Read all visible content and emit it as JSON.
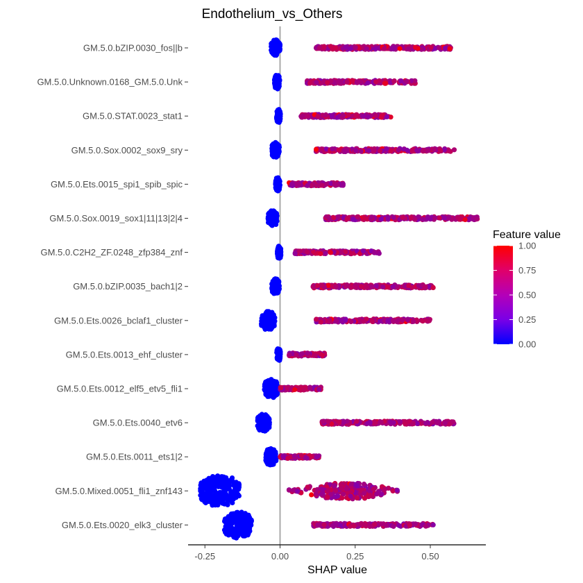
{
  "chart_data": {
    "type": "scatter",
    "subtype": "shap-beeswarm",
    "title": "Endothelium_vs_Others",
    "xlabel": "SHAP value",
    "ylabel": "",
    "xlim": [
      -0.3,
      0.68
    ],
    "xticks": [
      -0.25,
      0.0,
      0.25,
      0.5
    ],
    "xtick_labels": [
      "-0.25",
      "0.00",
      "0.25",
      "0.50"
    ],
    "zero_line": true,
    "grid": false,
    "legend": {
      "title": "Feature value",
      "position": "right",
      "ticks": [
        "1.00",
        "0.75",
        "0.50",
        "0.25",
        "0.00"
      ],
      "range": [
        0,
        1
      ],
      "colors": [
        "#0000ff",
        "#ff0000"
      ]
    },
    "features": [
      {
        "label": "GM.5.0.bZIP.0030_fos||b",
        "neg_center": -0.015,
        "neg_width": 0.03,
        "pos_min": 0.12,
        "pos_max": 0.57,
        "pos_mean": 0.3
      },
      {
        "label": "GM.5.0.Unknown.0168_GM.5.0.Unk",
        "neg_center": -0.01,
        "neg_width": 0.018,
        "pos_min": 0.09,
        "pos_max": 0.45,
        "pos_mean": 0.22
      },
      {
        "label": "GM.5.0.STAT.0023_stat1",
        "neg_center": -0.005,
        "neg_width": 0.013,
        "pos_min": 0.07,
        "pos_max": 0.37,
        "pos_mean": 0.18
      },
      {
        "label": "GM.5.0.Sox.0002_sox9_sry",
        "neg_center": -0.015,
        "neg_width": 0.025,
        "pos_min": 0.12,
        "pos_max": 0.58,
        "pos_mean": 0.3
      },
      {
        "label": "GM.5.0.Ets.0015_spi1_spib_spic",
        "neg_center": -0.008,
        "neg_width": 0.015,
        "pos_min": 0.03,
        "pos_max": 0.21,
        "pos_mean": 0.1
      },
      {
        "label": "GM.5.0.Sox.0019_sox1|11|13|2|4",
        "neg_center": -0.025,
        "neg_width": 0.03,
        "pos_min": 0.15,
        "pos_max": 0.66,
        "pos_mean": 0.35
      },
      {
        "label": "GM.5.0.C2H2_ZF.0248_zfp384_znf",
        "neg_center": -0.003,
        "neg_width": 0.012,
        "pos_min": 0.05,
        "pos_max": 0.33,
        "pos_mean": 0.17
      },
      {
        "label": "GM.5.0.bZIP.0035_bach1|2",
        "neg_center": -0.015,
        "neg_width": 0.025,
        "pos_min": 0.11,
        "pos_max": 0.51,
        "pos_mean": 0.28
      },
      {
        "label": "GM.5.0.Ets.0026_bclaf1_cluster",
        "neg_center": -0.04,
        "neg_width": 0.045,
        "pos_min": 0.12,
        "pos_max": 0.5,
        "pos_mean": 0.25
      },
      {
        "label": "GM.5.0.Ets.0013_ehf_cluster",
        "neg_center": -0.005,
        "neg_width": 0.012,
        "pos_min": 0.03,
        "pos_max": 0.15,
        "pos_mean": 0.07
      },
      {
        "label": "GM.5.0.Ets.0012_elf5_etv5_fli1",
        "neg_center": -0.03,
        "neg_width": 0.045,
        "pos_min": 0.0,
        "pos_max": 0.14,
        "pos_mean": 0.05
      },
      {
        "label": "GM.5.0.Ets.0040_etv6",
        "neg_center": -0.055,
        "neg_width": 0.04,
        "pos_min": 0.14,
        "pos_max": 0.58,
        "pos_mean": 0.3
      },
      {
        "label": "GM.5.0.Ets.0011_ets1|2",
        "neg_center": -0.03,
        "neg_width": 0.035,
        "pos_min": 0.0,
        "pos_max": 0.13,
        "pos_mean": 0.05
      },
      {
        "label": "GM.5.0.Mixed.0051_fli1_znf143",
        "neg_center": -0.2,
        "neg_width": 0.13,
        "pos_min": 0.03,
        "pos_max": 0.39,
        "pos_mean": 0.22
      },
      {
        "label": "GM.5.0.Ets.0020_elk3_cluster",
        "neg_center": -0.14,
        "neg_width": 0.09,
        "pos_min": 0.11,
        "pos_max": 0.51,
        "pos_mean": 0.3
      }
    ]
  }
}
